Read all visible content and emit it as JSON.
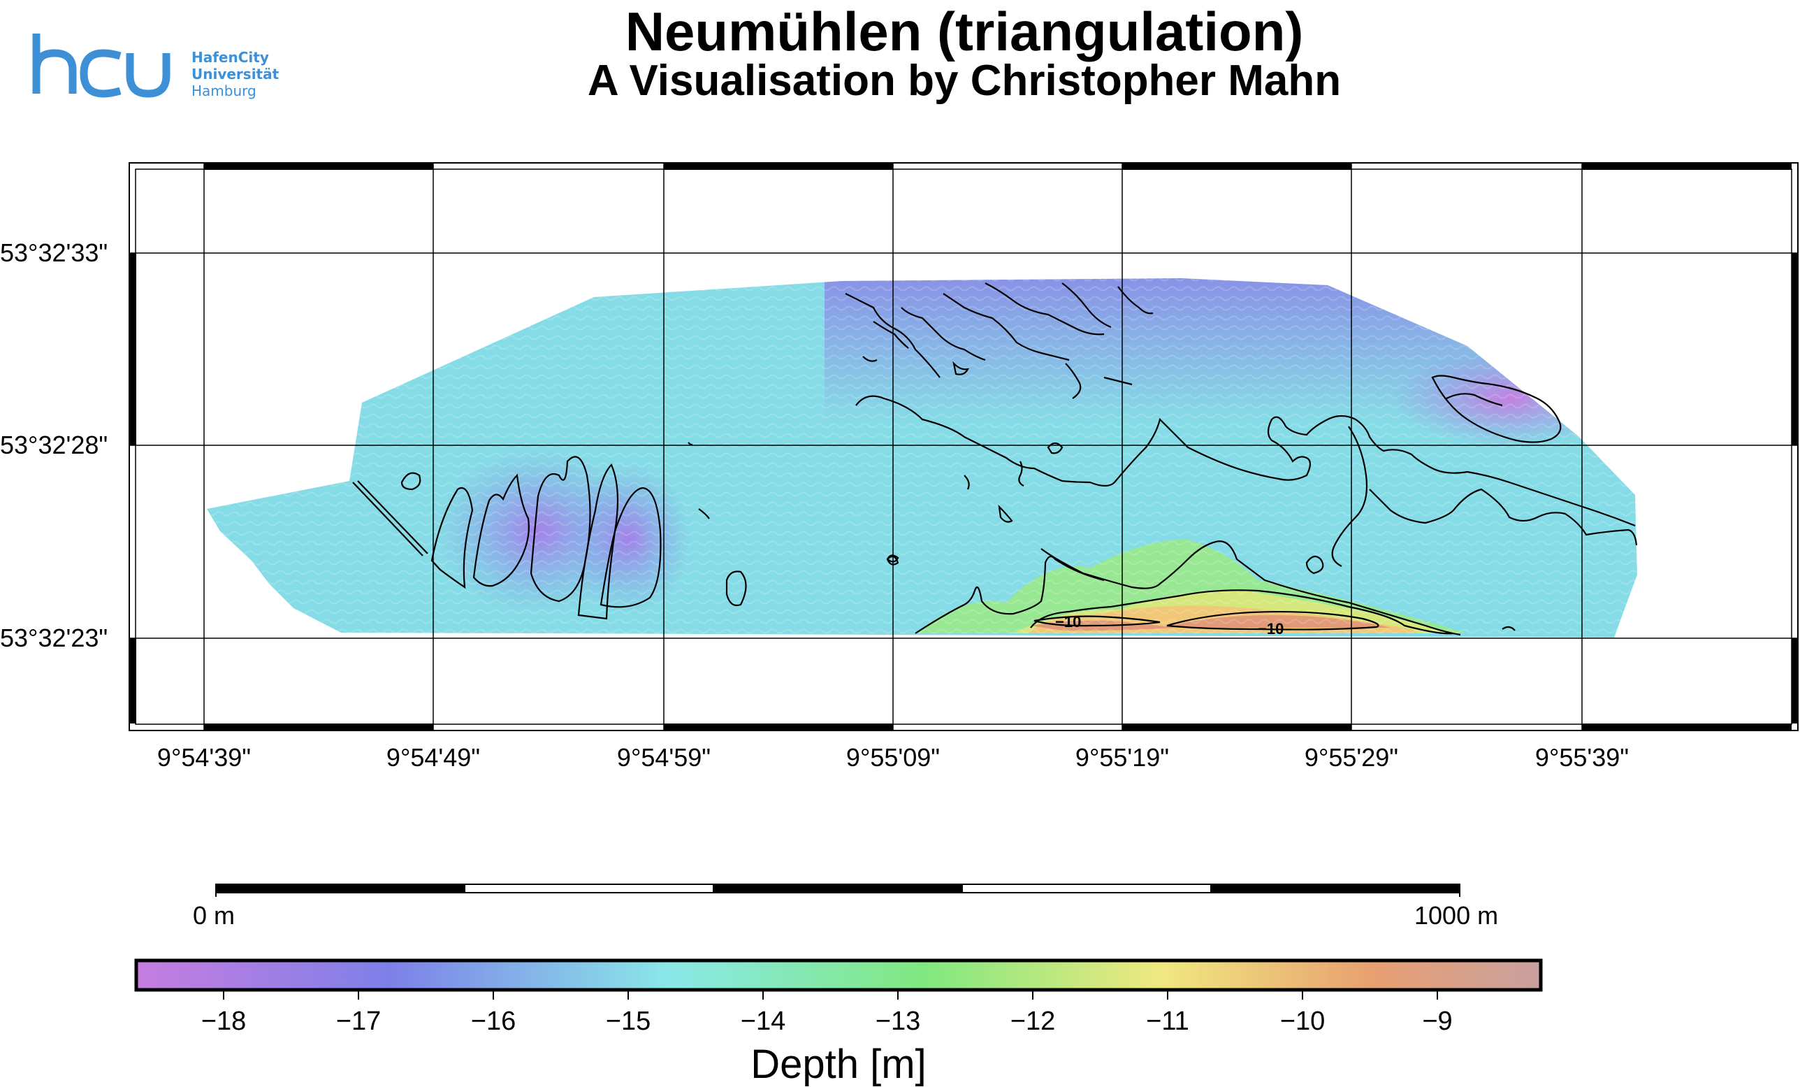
{
  "logo": {
    "mark": "hcu",
    "name_lines": [
      "HafenCity",
      "Universität",
      "Hamburg"
    ],
    "color": "#3d8fd6"
  },
  "title": "Neumühlen (triangulation)",
  "subtitle": "A Visualisation by Christopher Mahn",
  "map": {
    "lat_labels": [
      "53°32'33\"",
      "53°32'28\"",
      "53°32'23\""
    ],
    "lon_labels": [
      "9°54'39\"",
      "9°54'49\"",
      "9°54'59\"",
      "9°55'09\"",
      "9°55'19\"",
      "9°55'29\"",
      "9°55'39\""
    ],
    "contour_labels": [
      "−10",
      "−10"
    ],
    "contour_color": "#000000"
  },
  "scale_bar": {
    "start_label": "0 m",
    "end_label": "1000 m"
  },
  "colorbar": {
    "label": "Depth [m]",
    "ticks": [
      "−18",
      "−17",
      "−16",
      "−15",
      "−14",
      "−13",
      "−12",
      "−11",
      "−10",
      "−9"
    ],
    "min": -18.7,
    "max": -8.2,
    "colors": [
      "#c77de0",
      "#7d80e8",
      "#8ae8e8",
      "#80e880",
      "#f0e880",
      "#e8a070",
      "#c8a0a0"
    ]
  }
}
